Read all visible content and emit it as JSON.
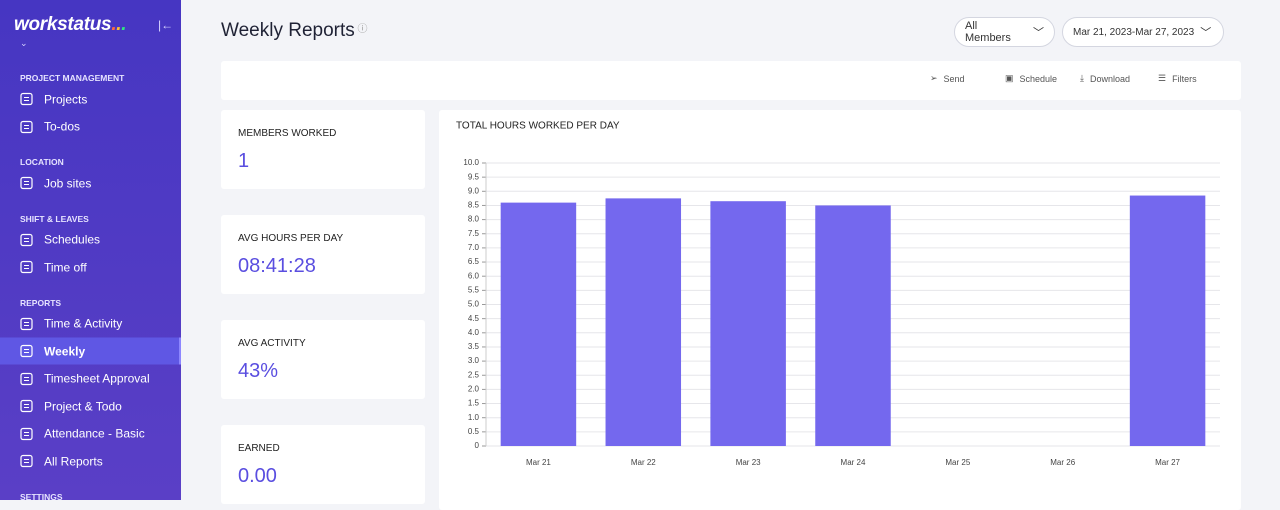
{
  "sidebar": {
    "logo": "workstatus",
    "sections": [
      {
        "title": "PROJECT MANAGEMENT",
        "items": [
          {
            "label": "Projects"
          },
          {
            "label": "To-dos"
          }
        ]
      },
      {
        "title": "LOCATION",
        "items": [
          {
            "label": "Job sites"
          }
        ]
      },
      {
        "title": "SHIFT & LEAVES",
        "items": [
          {
            "label": "Schedules"
          },
          {
            "label": "Time off"
          }
        ]
      },
      {
        "title": "REPORTS",
        "items": [
          {
            "label": "Time & Activity"
          },
          {
            "label": "Weekly",
            "active": true
          },
          {
            "label": "Timesheet Approval"
          },
          {
            "label": "Project & Todo"
          },
          {
            "label": "Attendance - Basic"
          },
          {
            "label": "All Reports"
          }
        ]
      },
      {
        "title": "SETTINGS",
        "items": []
      }
    ]
  },
  "header": {
    "title": "Weekly Reports",
    "members": "All Members",
    "date_range": "Mar 21, 2023-Mar 27, 2023"
  },
  "toolbar": [
    "Send",
    "Schedule",
    "Download",
    "Filters"
  ],
  "stats": [
    {
      "label": "MEMBERS WORKED",
      "value": "1"
    },
    {
      "label": "AVG HOURS PER DAY",
      "value": "08:41:28"
    },
    {
      "label": "AVG ACTIVITY",
      "value": "43%"
    },
    {
      "label": "EARNED",
      "value": "0.00"
    }
  ],
  "chart_data": {
    "type": "bar",
    "title": "TOTAL HOURS WORKED PER DAY",
    "categories": [
      "Mar 21",
      "Mar 22",
      "Mar 23",
      "Mar 24",
      "Mar 25",
      "Mar 26",
      "Mar 27"
    ],
    "values": [
      8.6,
      8.75,
      8.65,
      8.5,
      0,
      0,
      8.85
    ],
    "color": "#7468ee",
    "ylim": [
      0,
      10
    ],
    "yticks": [
      0,
      0.5,
      {
        "value": 1,
        "label": "1.0"
      },
      1.5,
      {
        "value": 2,
        "label": "2.0"
      },
      2.5,
      {
        "value": 3,
        "label": "3.0"
      },
      3.5,
      {
        "value": 4,
        "label": "4.0"
      },
      4.5,
      {
        "value": 5,
        "label": "5.0"
      },
      5.5,
      {
        "value": 6,
        "label": "6.0"
      },
      6.5,
      {
        "value": 7,
        "label": "7.0"
      },
      7.5,
      {
        "value": 8,
        "label": "8.0"
      },
      8.5,
      {
        "value": 9,
        "label": "9.0"
      },
      9.5,
      {
        "value": 10,
        "label": "10.0"
      }
    ],
    "grid": true
  }
}
